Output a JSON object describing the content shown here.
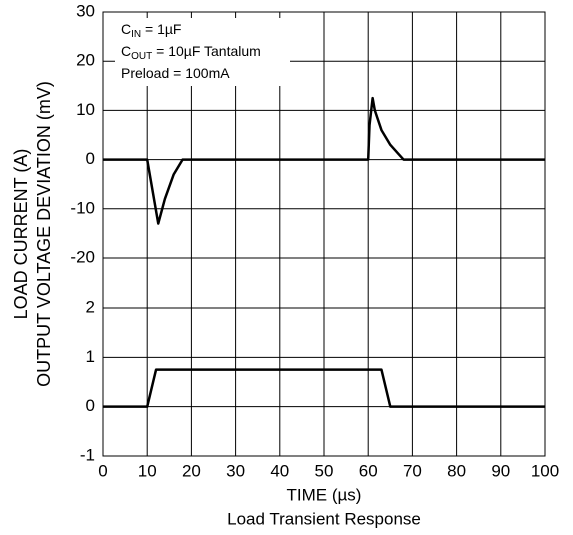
{
  "chart_data": [
    {
      "type": "line",
      "ylabel": "OUTPUT VOLTAGE DEVIATION (mV)",
      "annotations": [
        [
          "C",
          "IN",
          " = 1µF"
        ],
        [
          "C",
          "OUT",
          " = 10µF Tantalum"
        ],
        [
          "Preload = 100mA"
        ]
      ],
      "xlim": [
        0,
        100
      ],
      "ylim": [
        -20,
        30
      ],
      "yticks": [
        -20,
        -10,
        0,
        10,
        20,
        30
      ],
      "grid": true,
      "series": [
        {
          "color": "#000000",
          "x": [
            0,
            10,
            12.5,
            14,
            16,
            18,
            60,
            60.3,
            61,
            61.5,
            63,
            65,
            67,
            68,
            100
          ],
          "values": [
            0,
            0,
            -13,
            -8,
            -3,
            0,
            0,
            7,
            12.5,
            10,
            6,
            3,
            1,
            0,
            0
          ]
        }
      ]
    },
    {
      "type": "line",
      "ylabel": "LOAD CURRENT (A)",
      "xlabel": "TIME (µs)",
      "title": "Load Transient Response",
      "xlim": [
        0,
        100
      ],
      "xticks": [
        0,
        10,
        20,
        30,
        40,
        50,
        60,
        70,
        80,
        90,
        100
      ],
      "ylim": [
        -1,
        2
      ],
      "yticks": [
        -1,
        0,
        1,
        2
      ],
      "grid": true,
      "series": [
        {
          "color": "#000000",
          "x": [
            0,
            10,
            12,
            63,
            65,
            100
          ],
          "values": [
            0,
            0,
            0.75,
            0.75,
            0,
            0
          ]
        }
      ]
    }
  ]
}
